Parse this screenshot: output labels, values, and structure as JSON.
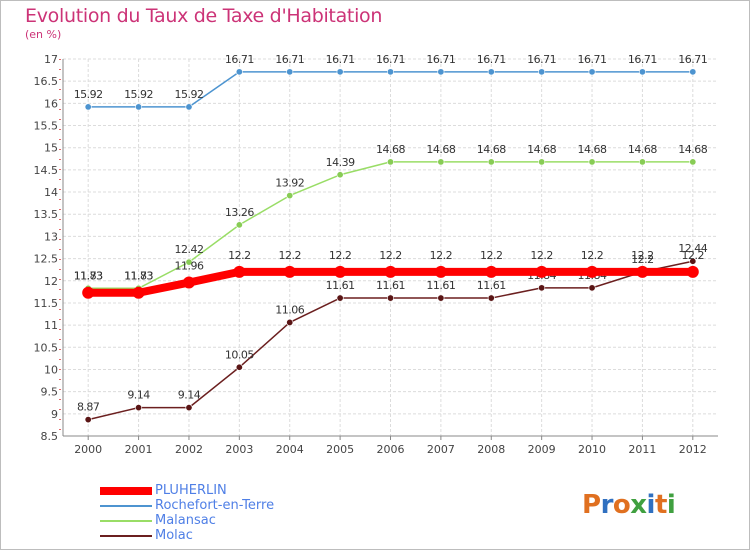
{
  "chart_data": {
    "type": "line",
    "title": "Evolution du Taux de Taxe d'Habitation",
    "ylabel": "(en %)",
    "x": [
      "2000",
      "2001",
      "2002",
      "2003",
      "2004",
      "2005",
      "2006",
      "2007",
      "2008",
      "2009",
      "2010",
      "2011",
      "2012"
    ],
    "ylim": [
      8.5,
      17
    ],
    "yticks": [
      "8.5",
      "9",
      "9.5",
      "10",
      "10.5",
      "11",
      "11.5",
      "12",
      "12.5",
      "13",
      "13.5",
      "14",
      "14.5",
      "15",
      "15.5",
      "16",
      "16.5",
      "17"
    ],
    "grid": true,
    "legend_position": "bottom-left",
    "series": [
      {
        "name": "PLUHERLIN",
        "color": "#ff0000",
        "values": [
          11.73,
          11.73,
          11.96,
          12.2,
          12.2,
          12.2,
          12.2,
          12.2,
          12.2,
          12.2,
          12.2,
          12.2,
          12.2
        ]
      },
      {
        "name": "Rochefort-en-Terre",
        "color": "#4d94d0",
        "values": [
          15.92,
          15.92,
          15.92,
          16.71,
          16.71,
          16.71,
          16.71,
          16.71,
          16.71,
          16.71,
          16.71,
          16.71,
          16.71
        ]
      },
      {
        "name": "Malansac",
        "color": "#99dd66",
        "values": [
          11.83,
          11.83,
          12.42,
          13.26,
          13.92,
          14.39,
          14.68,
          14.68,
          14.68,
          14.68,
          14.68,
          14.68,
          14.68
        ]
      },
      {
        "name": "Molac",
        "color": "#6b1f1f",
        "values": [
          8.87,
          9.14,
          9.14,
          10.05,
          11.06,
          11.61,
          11.61,
          11.61,
          11.61,
          11.84,
          11.84,
          12.2,
          12.44
        ]
      }
    ]
  },
  "logo": {
    "text": "Proxiti",
    "colors": [
      "#e07020",
      "#3070c0",
      "#e07020",
      "#40a040",
      "#3070c0",
      "#e07020",
      "#40a040"
    ]
  }
}
